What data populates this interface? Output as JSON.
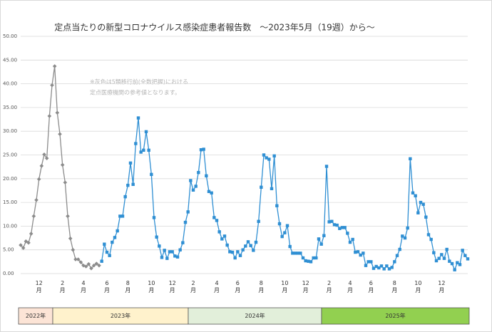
{
  "chart_data": {
    "type": "line",
    "title": "定点当たりの新型コロナウイルス感染症患者報告数　～2023年5月（19週）から～",
    "annotations": [
      "※灰色は5類移行前(全数把握)における",
      "定点医療機関の参考値となります。"
    ],
    "categories": [
      null,
      null,
      null,
      null,
      null,
      null,
      null,
      "12月",
      null,
      null,
      null,
      null,
      null,
      null,
      null,
      null,
      "2月",
      null,
      null,
      null,
      null,
      null,
      null,
      null,
      "4月",
      null,
      null,
      null,
      null,
      null,
      null,
      null,
      null,
      "6月",
      null,
      null,
      null,
      null,
      null,
      null,
      null,
      "8月",
      null,
      null,
      null,
      null,
      null,
      null,
      null,
      null,
      "10月",
      null,
      null,
      null,
      null,
      null,
      null,
      null,
      "12月",
      null,
      null,
      null,
      null,
      null,
      null,
      null,
      "2月",
      null,
      null,
      null,
      null,
      null,
      null,
      null,
      null,
      "4月",
      null,
      null,
      null,
      null,
      null,
      null,
      null,
      "6月",
      null,
      null,
      null,
      null,
      null,
      null,
      null,
      null,
      "8月",
      null,
      null,
      null,
      null,
      null,
      null,
      null,
      null,
      "10月",
      null,
      null,
      null,
      null,
      null,
      null,
      null,
      "12月",
      null,
      null,
      null,
      null,
      null,
      null,
      null,
      null,
      "2月",
      null,
      null,
      null,
      null,
      null,
      null,
      null,
      "4月",
      null,
      null,
      null,
      null,
      null,
      null,
      null,
      "6月",
      null,
      null,
      null,
      null,
      null,
      null,
      null,
      null,
      "8月",
      null,
      null,
      null,
      null,
      null,
      null,
      null,
      null,
      "10月",
      null,
      null,
      null,
      null,
      null,
      null,
      null,
      null,
      "12月",
      null,
      null,
      null,
      null,
      null,
      null,
      null,
      null,
      null,
      null
    ],
    "series": [
      {
        "color": "#8c8c8c",
        "marker": "diamond",
        "values": [
          6.0,
          5.4,
          6.8,
          6.5,
          8.4,
          12.1,
          15.5,
          19.9,
          22.7,
          25.1,
          24.3,
          33.2,
          39.7,
          43.7,
          33.9,
          29.4,
          22.9,
          19.2,
          12.1,
          7.4,
          5.0,
          3.0,
          3.0,
          2.4,
          1.7,
          1.5,
          2.0,
          1.1,
          1.7,
          2.1,
          1.7,
          null,
          null,
          null,
          null,
          null,
          null,
          null,
          null,
          null,
          null,
          null,
          null,
          null,
          null,
          null,
          null,
          null,
          null,
          null,
          null,
          null,
          null,
          null,
          null,
          null,
          null,
          null,
          null,
          null,
          null,
          null,
          null,
          null,
          null,
          null,
          null,
          null,
          null,
          null,
          null,
          null,
          null,
          null,
          null,
          null,
          null,
          null,
          null,
          null,
          null,
          null,
          null,
          null,
          null,
          null,
          null,
          null,
          null,
          null,
          null,
          null,
          null,
          null,
          null,
          null,
          null,
          null,
          null,
          null,
          null,
          null,
          null,
          null,
          null,
          null,
          null,
          null,
          null,
          null,
          null,
          null,
          null,
          null,
          null,
          null,
          null,
          null,
          null,
          null,
          null,
          null,
          null,
          null,
          null,
          null,
          null,
          null,
          null,
          null,
          null,
          null,
          null,
          null,
          null,
          null,
          null,
          null,
          null,
          null,
          null,
          null,
          null,
          null,
          null,
          null,
          null,
          null,
          null,
          null,
          null,
          null,
          null,
          null,
          null,
          null,
          null,
          null,
          null,
          null,
          null,
          null,
          null,
          null,
          null,
          null,
          null,
          null,
          null,
          null,
          null,
          null
        ]
      },
      {
        "color": "#2f8fd3",
        "marker": "square",
        "values": [
          null,
          null,
          null,
          null,
          null,
          null,
          null,
          null,
          null,
          null,
          null,
          null,
          null,
          null,
          null,
          null,
          null,
          null,
          null,
          null,
          null,
          null,
          null,
          null,
          null,
          null,
          null,
          null,
          null,
          null,
          null,
          2.6,
          6.2,
          4.5,
          3.8,
          6.6,
          7.6,
          9.0,
          12.1,
          12.1,
          16.2,
          18.6,
          23.3,
          18.8,
          27.4,
          32.8,
          25.6,
          26.0,
          29.9,
          26.0,
          20.9,
          11.8,
          7.7,
          5.8,
          3.4,
          4.9,
          3.2,
          4.6,
          4.6,
          3.7,
          3.5,
          5.0,
          6.5,
          10.8,
          13.0,
          19.6,
          17.6,
          18.4,
          21.3,
          26.1,
          26.2,
          20.6,
          17.3,
          17.0,
          11.8,
          11.2,
          8.8,
          7.3,
          7.9,
          6.0,
          4.6,
          4.5,
          3.3,
          4.6,
          3.8,
          5.0,
          5.8,
          6.7,
          5.9,
          4.9,
          6.6,
          11.0,
          18.2,
          25.0,
          24.4,
          24.1,
          17.9,
          24.8,
          14.3,
          10.5,
          7.8,
          8.6,
          10.1,
          5.7,
          4.3,
          4.3,
          4.3,
          4.3,
          3.3,
          2.7,
          2.6,
          2.5,
          3.3,
          3.3,
          7.3,
          6.2,
          8.0,
          22.6,
          10.9,
          11.0,
          10.3,
          10.2,
          9.5,
          9.7,
          9.7,
          8.5,
          6.6,
          7.2,
          4.5,
          4.6,
          3.9,
          4.3,
          1.7,
          2.5,
          2.5,
          1.1,
          1.5,
          1.2,
          1.6,
          1.0,
          1.6,
          1.0,
          1.3,
          2.5,
          3.8,
          5.1,
          7.9,
          7.5,
          9.6,
          24.2,
          17.0,
          16.4,
          12.8,
          15.0,
          14.6,
          11.9,
          8.2,
          7.2,
          4.4,
          2.7,
          3.2,
          4.0,
          3.2,
          5.1,
          2.6,
          2.1,
          0.8,
          2.3,
          1.9,
          4.9,
          3.8,
          3.1
        ]
      }
    ],
    "ylim": [
      0,
      50
    ],
    "yticks": [
      {
        "value": 0,
        "label": "0.00"
      },
      {
        "value": 5,
        "label": "5.00"
      },
      {
        "value": 10,
        "label": "10.00"
      },
      {
        "value": 15,
        "label": "15.00"
      },
      {
        "value": 20,
        "label": "20.00"
      },
      {
        "value": 25,
        "label": "25.00"
      },
      {
        "value": 30,
        "label": "30.00"
      },
      {
        "value": 35,
        "label": "35.00"
      },
      {
        "value": 40,
        "label": "40.00"
      },
      {
        "value": 45,
        "label": "45.00"
      },
      {
        "value": 50,
        "label": "50.00"
      }
    ],
    "grid": true,
    "periods": [
      {
        "label": "2022年",
        "color": "#fce4d6"
      },
      {
        "label": "2023年",
        "color": "#fff2cc"
      },
      {
        "label": "2024年",
        "color": "#e2efda"
      },
      {
        "label": "2025年",
        "color": "#92d050"
      }
    ]
  }
}
